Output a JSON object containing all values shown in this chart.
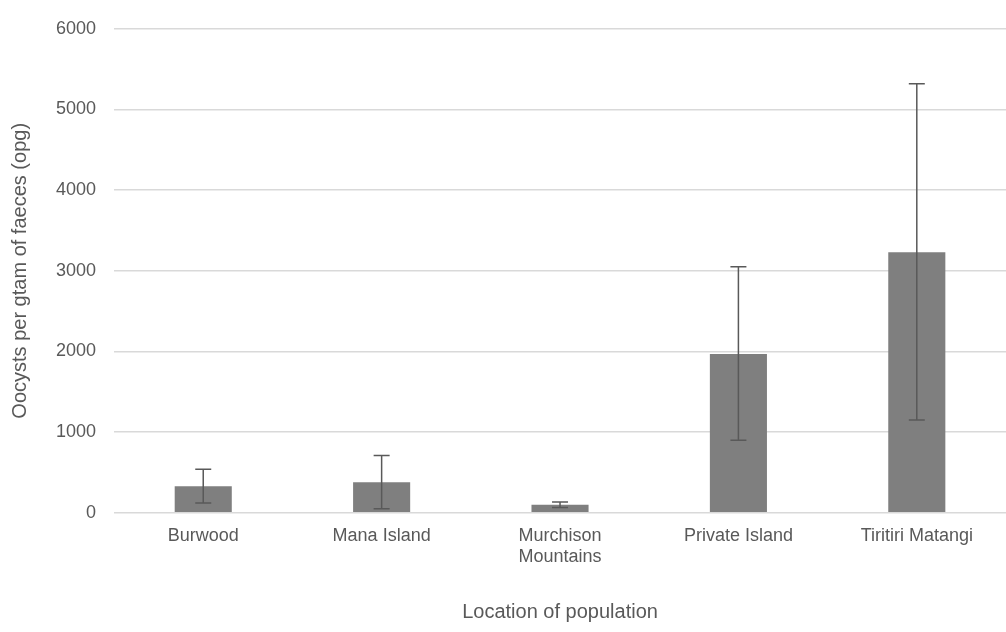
{
  "chart_data": {
    "type": "bar",
    "xlabel": "Location of population",
    "ylabel": "Oocysts per gtam of faeces (opg)",
    "categories": [
      "Burwood",
      "Mana Island",
      "Murchison Mountains",
      "Private Island",
      "Tiritiri Matangi"
    ],
    "values": [
      330,
      380,
      100,
      1970,
      3230
    ],
    "errors": [
      [
        120,
        540
      ],
      [
        50,
        710
      ],
      [
        65,
        135
      ],
      [
        900,
        3050
      ],
      [
        1150,
        5320
      ]
    ],
    "color": "#7f7f7f",
    "ylim": [
      0,
      6000
    ],
    "yticks": [
      0,
      1000,
      2000,
      3000,
      4000,
      5000,
      6000
    ],
    "grid": "y",
    "legend": false
  }
}
